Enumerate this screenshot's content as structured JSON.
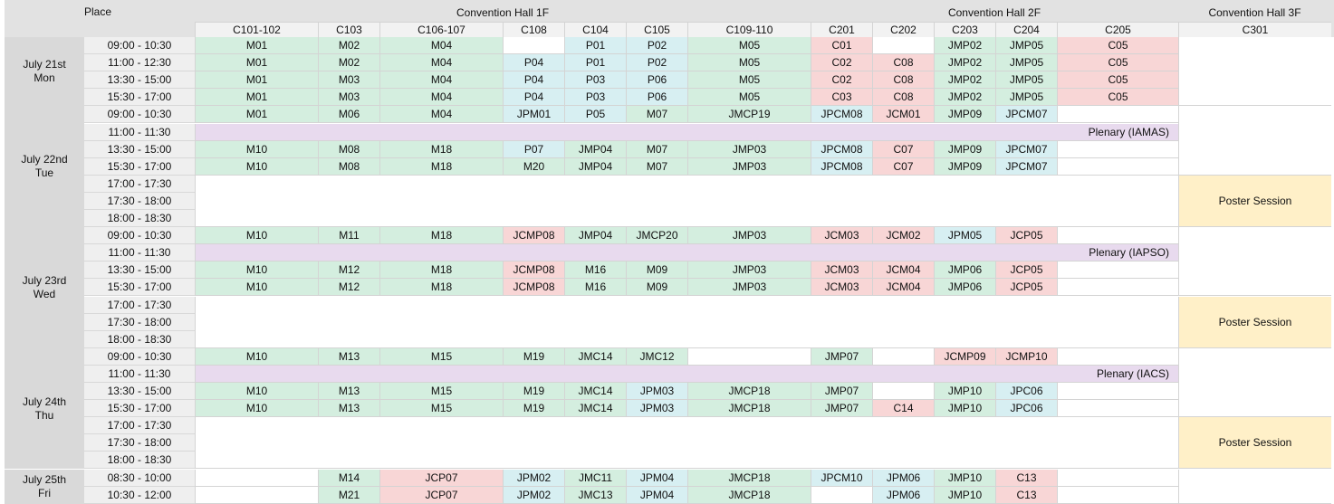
{
  "header": {
    "place_label": "Place",
    "halls": [
      "Convention Hall 1F",
      "Convention Hall 2F",
      "Convention Hall 3F"
    ],
    "rooms": [
      "C101-102",
      "C103",
      "C106-107",
      "C108",
      "C104",
      "C105",
      "C109-110",
      "C201",
      "C202",
      "C203",
      "C204",
      "C205",
      "C301"
    ]
  },
  "days": [
    {
      "label": "July 21st\nMon"
    },
    {
      "label": "July 22nd\nTue"
    },
    {
      "label": "July 23rd\nWed"
    },
    {
      "label": "July 24th\nThu"
    },
    {
      "label": "July 25th\nFri"
    }
  ],
  "times": [
    "09:00 - 10:30",
    "11:00 - 12:30",
    "13:30 - 15:00",
    "15:30 - 17:00",
    "09:00 - 10:30",
    "11:00 - 11:30",
    "13:30 - 15:00",
    "15:30 - 17:00",
    "17:00 - 17:30",
    "17:30 - 18:00",
    "18:00 - 18:30",
    "09:00 - 10:30",
    "11:00 - 11:30",
    "13:30 - 15:00",
    "15:30 - 17:00",
    "17:00 - 17:30",
    "17:30 - 18:00",
    "18:00 - 18:30",
    "09:00 - 10:30",
    "11:00 - 11:30",
    "13:30 - 15:00",
    "15:30 - 17:00",
    "17:00 - 17:30",
    "17:30 - 18:00",
    "18:00 - 18:30",
    "08:30 - 10:00",
    "10:30 - 12:00"
  ],
  "colors": {
    "green": "#d4eedf",
    "blue": "#d7eff2",
    "red": "#f8d6d6",
    "purple": "#e8daee",
    "yellow": "#fff0c8"
  },
  "cells": [
    {
      "r": 0,
      "c": 0,
      "t": "M01",
      "k": "green"
    },
    {
      "r": 0,
      "c": 1,
      "t": "M02",
      "k": "green"
    },
    {
      "r": 0,
      "c": 2,
      "t": "M04",
      "k": "green"
    },
    {
      "r": 0,
      "c": 3,
      "t": "",
      "k": "white"
    },
    {
      "r": 0,
      "c": 4,
      "t": "P01",
      "k": "blue"
    },
    {
      "r": 0,
      "c": 5,
      "t": "P02",
      "k": "blue"
    },
    {
      "r": 0,
      "c": 6,
      "t": "M05",
      "k": "green"
    },
    {
      "r": 0,
      "c": 7,
      "t": "C01",
      "k": "red"
    },
    {
      "r": 0,
      "c": 8,
      "t": "",
      "k": "white"
    },
    {
      "r": 0,
      "c": 9,
      "t": "JMP02",
      "k": "green"
    },
    {
      "r": 0,
      "c": 10,
      "t": "JMP05",
      "k": "green"
    },
    {
      "r": 0,
      "c": 11,
      "t": "C05",
      "k": "red"
    },
    {
      "r": 1,
      "c": 0,
      "t": "M01",
      "k": "green"
    },
    {
      "r": 1,
      "c": 1,
      "t": "M02",
      "k": "green"
    },
    {
      "r": 1,
      "c": 2,
      "t": "M04",
      "k": "green"
    },
    {
      "r": 1,
      "c": 3,
      "t": "P04",
      "k": "blue"
    },
    {
      "r": 1,
      "c": 4,
      "t": "P01",
      "k": "blue"
    },
    {
      "r": 1,
      "c": 5,
      "t": "P02",
      "k": "blue"
    },
    {
      "r": 1,
      "c": 6,
      "t": "M05",
      "k": "green"
    },
    {
      "r": 1,
      "c": 7,
      "t": "C02",
      "k": "red"
    },
    {
      "r": 1,
      "c": 8,
      "t": "C08",
      "k": "red"
    },
    {
      "r": 1,
      "c": 9,
      "t": "JMP02",
      "k": "green"
    },
    {
      "r": 1,
      "c": 10,
      "t": "JMP05",
      "k": "green"
    },
    {
      "r": 1,
      "c": 11,
      "t": "C05",
      "k": "red"
    },
    {
      "r": 2,
      "c": 0,
      "t": "M01",
      "k": "green"
    },
    {
      "r": 2,
      "c": 1,
      "t": "M03",
      "k": "green"
    },
    {
      "r": 2,
      "c": 2,
      "t": "M04",
      "k": "green"
    },
    {
      "r": 2,
      "c": 3,
      "t": "P04",
      "k": "blue"
    },
    {
      "r": 2,
      "c": 4,
      "t": "P03",
      "k": "blue"
    },
    {
      "r": 2,
      "c": 5,
      "t": "P06",
      "k": "blue"
    },
    {
      "r": 2,
      "c": 6,
      "t": "M05",
      "k": "green"
    },
    {
      "r": 2,
      "c": 7,
      "t": "C02",
      "k": "red"
    },
    {
      "r": 2,
      "c": 8,
      "t": "C08",
      "k": "red"
    },
    {
      "r": 2,
      "c": 9,
      "t": "JMP02",
      "k": "green"
    },
    {
      "r": 2,
      "c": 10,
      "t": "JMP05",
      "k": "green"
    },
    {
      "r": 2,
      "c": 11,
      "t": "C05",
      "k": "red"
    },
    {
      "r": 3,
      "c": 0,
      "t": "M01",
      "k": "green"
    },
    {
      "r": 3,
      "c": 1,
      "t": "M03",
      "k": "green"
    },
    {
      "r": 3,
      "c": 2,
      "t": "M04",
      "k": "green"
    },
    {
      "r": 3,
      "c": 3,
      "t": "P04",
      "k": "blue"
    },
    {
      "r": 3,
      "c": 4,
      "t": "P03",
      "k": "blue"
    },
    {
      "r": 3,
      "c": 5,
      "t": "P06",
      "k": "blue"
    },
    {
      "r": 3,
      "c": 6,
      "t": "M05",
      "k": "green"
    },
    {
      "r": 3,
      "c": 7,
      "t": "C03",
      "k": "red"
    },
    {
      "r": 3,
      "c": 8,
      "t": "C08",
      "k": "red"
    },
    {
      "r": 3,
      "c": 9,
      "t": "JMP02",
      "k": "green"
    },
    {
      "r": 3,
      "c": 10,
      "t": "JMP05",
      "k": "green"
    },
    {
      "r": 3,
      "c": 11,
      "t": "C05",
      "k": "red"
    },
    {
      "r": 0,
      "c": 12,
      "t": "",
      "k": "white",
      "rs": 4
    },
    {
      "r": 4,
      "c": 0,
      "t": "M01",
      "k": "green"
    },
    {
      "r": 4,
      "c": 1,
      "t": "M06",
      "k": "green"
    },
    {
      "r": 4,
      "c": 2,
      "t": "M04",
      "k": "green"
    },
    {
      "r": 4,
      "c": 3,
      "t": "JPM01",
      "k": "blue"
    },
    {
      "r": 4,
      "c": 4,
      "t": "P05",
      "k": "blue"
    },
    {
      "r": 4,
      "c": 5,
      "t": "M07",
      "k": "green"
    },
    {
      "r": 4,
      "c": 6,
      "t": "JMCP19",
      "k": "green"
    },
    {
      "r": 4,
      "c": 7,
      "t": "JPCM08",
      "k": "blue"
    },
    {
      "r": 4,
      "c": 8,
      "t": "JCM01",
      "k": "red"
    },
    {
      "r": 4,
      "c": 9,
      "t": "JMP09",
      "k": "green"
    },
    {
      "r": 4,
      "c": 10,
      "t": "JPCM07",
      "k": "blue"
    },
    {
      "r": 4,
      "c": 11,
      "t": "",
      "k": "white"
    },
    {
      "r": 5,
      "c": 0,
      "t": "Plenary (IAMAS)",
      "k": "purple",
      "cs": 12
    },
    {
      "r": 6,
      "c": 0,
      "t": "M10",
      "k": "green"
    },
    {
      "r": 6,
      "c": 1,
      "t": "M08",
      "k": "green"
    },
    {
      "r": 6,
      "c": 2,
      "t": "M18",
      "k": "green"
    },
    {
      "r": 6,
      "c": 3,
      "t": "P07",
      "k": "blue"
    },
    {
      "r": 6,
      "c": 4,
      "t": "JMP04",
      "k": "green"
    },
    {
      "r": 6,
      "c": 5,
      "t": "M07",
      "k": "green"
    },
    {
      "r": 6,
      "c": 6,
      "t": "JMP03",
      "k": "green"
    },
    {
      "r": 6,
      "c": 7,
      "t": "JPCM08",
      "k": "blue"
    },
    {
      "r": 6,
      "c": 8,
      "t": "C07",
      "k": "red"
    },
    {
      "r": 6,
      "c": 9,
      "t": "JMP09",
      "k": "green"
    },
    {
      "r": 6,
      "c": 10,
      "t": "JPCM07",
      "k": "blue"
    },
    {
      "r": 6,
      "c": 11,
      "t": "",
      "k": "white"
    },
    {
      "r": 7,
      "c": 0,
      "t": "M10",
      "k": "green"
    },
    {
      "r": 7,
      "c": 1,
      "t": "M08",
      "k": "green"
    },
    {
      "r": 7,
      "c": 2,
      "t": "M18",
      "k": "green"
    },
    {
      "r": 7,
      "c": 3,
      "t": "M20",
      "k": "green"
    },
    {
      "r": 7,
      "c": 4,
      "t": "JMP04",
      "k": "green"
    },
    {
      "r": 7,
      "c": 5,
      "t": "M07",
      "k": "green"
    },
    {
      "r": 7,
      "c": 6,
      "t": "JMP03",
      "k": "green"
    },
    {
      "r": 7,
      "c": 7,
      "t": "JPCM08",
      "k": "blue"
    },
    {
      "r": 7,
      "c": 8,
      "t": "C07",
      "k": "red"
    },
    {
      "r": 7,
      "c": 9,
      "t": "JMP09",
      "k": "green"
    },
    {
      "r": 7,
      "c": 10,
      "t": "JPCM07",
      "k": "blue"
    },
    {
      "r": 7,
      "c": 11,
      "t": "",
      "k": "white"
    },
    {
      "r": 4,
      "c": 12,
      "t": "",
      "k": "white",
      "rs": 4
    },
    {
      "r": 8,
      "c": 0,
      "t": "",
      "k": "white",
      "cs": 12,
      "rs": 3
    },
    {
      "r": 8,
      "c": 12,
      "t": "Poster Session",
      "k": "yellow",
      "rs": 3
    },
    {
      "r": 11,
      "c": 0,
      "t": "M10",
      "k": "green"
    },
    {
      "r": 11,
      "c": 1,
      "t": "M11",
      "k": "green"
    },
    {
      "r": 11,
      "c": 2,
      "t": "M18",
      "k": "green"
    },
    {
      "r": 11,
      "c": 3,
      "t": "JCMP08",
      "k": "red"
    },
    {
      "r": 11,
      "c": 4,
      "t": "JMP04",
      "k": "green"
    },
    {
      "r": 11,
      "c": 5,
      "t": "JMCP20",
      "k": "green"
    },
    {
      "r": 11,
      "c": 6,
      "t": "JMP03",
      "k": "green"
    },
    {
      "r": 11,
      "c": 7,
      "t": "JCM03",
      "k": "red"
    },
    {
      "r": 11,
      "c": 8,
      "t": "JCM02",
      "k": "red"
    },
    {
      "r": 11,
      "c": 9,
      "t": "JPM05",
      "k": "blue"
    },
    {
      "r": 11,
      "c": 10,
      "t": "JCP05",
      "k": "red"
    },
    {
      "r": 11,
      "c": 11,
      "t": "",
      "k": "white"
    },
    {
      "r": 12,
      "c": 0,
      "t": "Plenary (IAPSO)",
      "k": "purple",
      "cs": 12
    },
    {
      "r": 13,
      "c": 0,
      "t": "M10",
      "k": "green"
    },
    {
      "r": 13,
      "c": 1,
      "t": "M12",
      "k": "green"
    },
    {
      "r": 13,
      "c": 2,
      "t": "M18",
      "k": "green"
    },
    {
      "r": 13,
      "c": 3,
      "t": "JCMP08",
      "k": "red"
    },
    {
      "r": 13,
      "c": 4,
      "t": "M16",
      "k": "green"
    },
    {
      "r": 13,
      "c": 5,
      "t": "M09",
      "k": "green"
    },
    {
      "r": 13,
      "c": 6,
      "t": "JMP03",
      "k": "green"
    },
    {
      "r": 13,
      "c": 7,
      "t": "JCM03",
      "k": "red"
    },
    {
      "r": 13,
      "c": 8,
      "t": "JCM04",
      "k": "red"
    },
    {
      "r": 13,
      "c": 9,
      "t": "JMP06",
      "k": "green"
    },
    {
      "r": 13,
      "c": 10,
      "t": "JCP05",
      "k": "red"
    },
    {
      "r": 13,
      "c": 11,
      "t": "",
      "k": "white"
    },
    {
      "r": 14,
      "c": 0,
      "t": "M10",
      "k": "green"
    },
    {
      "r": 14,
      "c": 1,
      "t": "M12",
      "k": "green"
    },
    {
      "r": 14,
      "c": 2,
      "t": "M18",
      "k": "green"
    },
    {
      "r": 14,
      "c": 3,
      "t": "JCMP08",
      "k": "red"
    },
    {
      "r": 14,
      "c": 4,
      "t": "M16",
      "k": "green"
    },
    {
      "r": 14,
      "c": 5,
      "t": "M09",
      "k": "green"
    },
    {
      "r": 14,
      "c": 6,
      "t": "JMP03",
      "k": "green"
    },
    {
      "r": 14,
      "c": 7,
      "t": "JCM03",
      "k": "red"
    },
    {
      "r": 14,
      "c": 8,
      "t": "JCM04",
      "k": "red"
    },
    {
      "r": 14,
      "c": 9,
      "t": "JMP06",
      "k": "green"
    },
    {
      "r": 14,
      "c": 10,
      "t": "JCP05",
      "k": "red"
    },
    {
      "r": 14,
      "c": 11,
      "t": "",
      "k": "white"
    },
    {
      "r": 11,
      "c": 12,
      "t": "",
      "k": "white",
      "rs": 4
    },
    {
      "r": 15,
      "c": 0,
      "t": "",
      "k": "white",
      "cs": 12,
      "rs": 3
    },
    {
      "r": 15,
      "c": 12,
      "t": "Poster Session",
      "k": "yellow",
      "rs": 3
    },
    {
      "r": 18,
      "c": 0,
      "t": "M10",
      "k": "green"
    },
    {
      "r": 18,
      "c": 1,
      "t": "M13",
      "k": "green"
    },
    {
      "r": 18,
      "c": 2,
      "t": "M15",
      "k": "green"
    },
    {
      "r": 18,
      "c": 3,
      "t": "M19",
      "k": "green"
    },
    {
      "r": 18,
      "c": 4,
      "t": "JMC14",
      "k": "green"
    },
    {
      "r": 18,
      "c": 5,
      "t": "JMC12",
      "k": "green"
    },
    {
      "r": 18,
      "c": 6,
      "t": "",
      "k": "white"
    },
    {
      "r": 18,
      "c": 7,
      "t": "JMP07",
      "k": "green"
    },
    {
      "r": 18,
      "c": 8,
      "t": "",
      "k": "white"
    },
    {
      "r": 18,
      "c": 9,
      "t": "JCMP09",
      "k": "red"
    },
    {
      "r": 18,
      "c": 10,
      "t": "JCMP10",
      "k": "red"
    },
    {
      "r": 18,
      "c": 11,
      "t": "",
      "k": "white"
    },
    {
      "r": 19,
      "c": 0,
      "t": "Plenary (IACS)",
      "k": "purple",
      "cs": 12
    },
    {
      "r": 20,
      "c": 0,
      "t": "M10",
      "k": "green"
    },
    {
      "r": 20,
      "c": 1,
      "t": "M13",
      "k": "green"
    },
    {
      "r": 20,
      "c": 2,
      "t": "M15",
      "k": "green"
    },
    {
      "r": 20,
      "c": 3,
      "t": "M19",
      "k": "green"
    },
    {
      "r": 20,
      "c": 4,
      "t": "JMC14",
      "k": "green"
    },
    {
      "r": 20,
      "c": 5,
      "t": "JPM03",
      "k": "blue"
    },
    {
      "r": 20,
      "c": 6,
      "t": "JMCP18",
      "k": "green"
    },
    {
      "r": 20,
      "c": 7,
      "t": "JMP07",
      "k": "green"
    },
    {
      "r": 20,
      "c": 8,
      "t": "",
      "k": "white"
    },
    {
      "r": 20,
      "c": 9,
      "t": "JMP10",
      "k": "green"
    },
    {
      "r": 20,
      "c": 10,
      "t": "JPC06",
      "k": "blue"
    },
    {
      "r": 20,
      "c": 11,
      "t": "",
      "k": "white"
    },
    {
      "r": 21,
      "c": 0,
      "t": "M10",
      "k": "green"
    },
    {
      "r": 21,
      "c": 1,
      "t": "M13",
      "k": "green"
    },
    {
      "r": 21,
      "c": 2,
      "t": "M15",
      "k": "green"
    },
    {
      "r": 21,
      "c": 3,
      "t": "M19",
      "k": "green"
    },
    {
      "r": 21,
      "c": 4,
      "t": "JMC14",
      "k": "green"
    },
    {
      "r": 21,
      "c": 5,
      "t": "JPM03",
      "k": "blue"
    },
    {
      "r": 21,
      "c": 6,
      "t": "JMCP18",
      "k": "green"
    },
    {
      "r": 21,
      "c": 7,
      "t": "JMP07",
      "k": "green"
    },
    {
      "r": 21,
      "c": 8,
      "t": "C14",
      "k": "red"
    },
    {
      "r": 21,
      "c": 9,
      "t": "JMP10",
      "k": "green"
    },
    {
      "r": 21,
      "c": 10,
      "t": "JPC06",
      "k": "blue"
    },
    {
      "r": 21,
      "c": 11,
      "t": "",
      "k": "white"
    },
    {
      "r": 18,
      "c": 12,
      "t": "",
      "k": "white",
      "rs": 4
    },
    {
      "r": 22,
      "c": 0,
      "t": "",
      "k": "white",
      "cs": 12,
      "rs": 3
    },
    {
      "r": 22,
      "c": 12,
      "t": "Poster Session",
      "k": "yellow",
      "rs": 3
    },
    {
      "r": 25,
      "c": 0,
      "t": "",
      "k": "white"
    },
    {
      "r": 25,
      "c": 1,
      "t": "M14",
      "k": "green"
    },
    {
      "r": 25,
      "c": 2,
      "t": "JCP07",
      "k": "red"
    },
    {
      "r": 25,
      "c": 3,
      "t": "JPM02",
      "k": "blue"
    },
    {
      "r": 25,
      "c": 4,
      "t": "JMC11",
      "k": "green"
    },
    {
      "r": 25,
      "c": 5,
      "t": "JPM04",
      "k": "blue"
    },
    {
      "r": 25,
      "c": 6,
      "t": "JMCP18",
      "k": "green"
    },
    {
      "r": 25,
      "c": 7,
      "t": "JPCM10",
      "k": "blue"
    },
    {
      "r": 25,
      "c": 8,
      "t": "JPM06",
      "k": "blue"
    },
    {
      "r": 25,
      "c": 9,
      "t": "JMP10",
      "k": "green"
    },
    {
      "r": 25,
      "c": 10,
      "t": "C13",
      "k": "red"
    },
    {
      "r": 25,
      "c": 11,
      "t": "",
      "k": "white"
    },
    {
      "r": 26,
      "c": 0,
      "t": "",
      "k": "white"
    },
    {
      "r": 26,
      "c": 1,
      "t": "M21",
      "k": "green"
    },
    {
      "r": 26,
      "c": 2,
      "t": "JCP07",
      "k": "red"
    },
    {
      "r": 26,
      "c": 3,
      "t": "JPM02",
      "k": "blue"
    },
    {
      "r": 26,
      "c": 4,
      "t": "JMC13",
      "k": "green"
    },
    {
      "r": 26,
      "c": 5,
      "t": "JPM04",
      "k": "blue"
    },
    {
      "r": 26,
      "c": 6,
      "t": "JMCP18",
      "k": "green"
    },
    {
      "r": 26,
      "c": 7,
      "t": "",
      "k": "white"
    },
    {
      "r": 26,
      "c": 8,
      "t": "JPM06",
      "k": "blue"
    },
    {
      "r": 26,
      "c": 9,
      "t": "JMP10",
      "k": "green"
    },
    {
      "r": 26,
      "c": 10,
      "t": "C13",
      "k": "red"
    },
    {
      "r": 26,
      "c": 11,
      "t": "",
      "k": "white"
    },
    {
      "r": 25,
      "c": 12,
      "t": "",
      "k": "white",
      "rs": 2
    }
  ]
}
